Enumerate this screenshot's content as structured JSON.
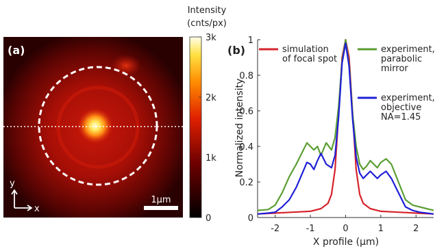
{
  "chart_data": [
    {
      "type": "heatmap",
      "panel_label": "(a)",
      "colorbar": {
        "title_line1": "Intensity",
        "title_line2": "(cnts/px)",
        "ticks": [
          {
            "value": 3000,
            "label": "3k"
          },
          {
            "value": 2000,
            "label": "2k"
          },
          {
            "value": 1000,
            "label": "1k"
          },
          {
            "value": 0,
            "label": "0"
          }
        ],
        "range": [
          0,
          3000
        ]
      },
      "axes_indicator": {
        "y_label": "y",
        "x_label": "x"
      },
      "scale_bar_label": "1μm",
      "annotations": [
        "dashed circle",
        "dotted horizontal line through center"
      ]
    },
    {
      "type": "line",
      "panel_label": "(b)",
      "xlabel": "X profile (μm)",
      "ylabel": "Normalized intensity",
      "xlim": [
        -2.5,
        2.5
      ],
      "ylim": [
        0,
        1
      ],
      "xticks": [
        {
          "value": -2,
          "label": "-2"
        },
        {
          "value": -1,
          "label": "-1"
        },
        {
          "value": 0,
          "label": "0"
        },
        {
          "value": 1,
          "label": "1"
        },
        {
          "value": 2,
          "label": "2"
        }
      ],
      "yticks": [
        {
          "value": 0,
          "label": "0"
        },
        {
          "value": 0.2,
          "label": "0.2"
        },
        {
          "value": 0.4,
          "label": "0.4"
        },
        {
          "value": 0.6,
          "label": "0.6"
        },
        {
          "value": 0.8,
          "label": "0.8"
        },
        {
          "value": 1,
          "label": "1"
        }
      ],
      "legend": [
        {
          "color": "#d6232a",
          "lines": [
            "simulation",
            "of focal spot"
          ]
        },
        {
          "color": "#5a9e32",
          "lines": [
            "experiment,",
            "parabolic",
            "mirror"
          ]
        },
        {
          "color": "#1f1fd6",
          "lines": [
            "experiment,",
            "objective",
            "NA=1.45"
          ]
        }
      ],
      "series": [
        {
          "color": "#d6232a",
          "x": [
            -2.5,
            -2.0,
            -1.5,
            -1.0,
            -0.7,
            -0.5,
            -0.4,
            -0.3,
            -0.2,
            -0.1,
            0,
            0.1,
            0.2,
            0.3,
            0.4,
            0.5,
            0.7,
            1.0,
            1.5,
            2.0,
            2.5
          ],
          "y": [
            0.02,
            0.025,
            0.03,
            0.035,
            0.05,
            0.08,
            0.13,
            0.27,
            0.58,
            0.9,
            1.0,
            0.9,
            0.58,
            0.27,
            0.13,
            0.08,
            0.05,
            0.035,
            0.03,
            0.025,
            0.02
          ]
        },
        {
          "color": "#5a9e32",
          "x": [
            -2.5,
            -2.2,
            -2.0,
            -1.8,
            -1.6,
            -1.4,
            -1.25,
            -1.1,
            -1.0,
            -0.9,
            -0.8,
            -0.7,
            -0.55,
            -0.4,
            -0.3,
            -0.2,
            -0.1,
            0,
            0.1,
            0.2,
            0.3,
            0.4,
            0.5,
            0.6,
            0.7,
            0.8,
            0.9,
            1.0,
            1.15,
            1.3,
            1.5,
            1.7,
            1.9,
            2.1,
            2.3,
            2.5
          ],
          "y": [
            0.04,
            0.045,
            0.07,
            0.14,
            0.23,
            0.3,
            0.36,
            0.42,
            0.4,
            0.38,
            0.4,
            0.35,
            0.42,
            0.38,
            0.45,
            0.62,
            0.88,
            1.0,
            0.86,
            0.58,
            0.4,
            0.3,
            0.27,
            0.29,
            0.32,
            0.3,
            0.28,
            0.31,
            0.33,
            0.3,
            0.2,
            0.1,
            0.07,
            0.06,
            0.05,
            0.04
          ]
        },
        {
          "color": "#1f1fd6",
          "x": [
            -2.5,
            -2.2,
            -2.0,
            -1.8,
            -1.6,
            -1.4,
            -1.25,
            -1.1,
            -1.0,
            -0.9,
            -0.8,
            -0.7,
            -0.55,
            -0.4,
            -0.3,
            -0.2,
            -0.1,
            0,
            0.1,
            0.2,
            0.3,
            0.4,
            0.5,
            0.6,
            0.7,
            0.8,
            0.9,
            1.0,
            1.15,
            1.3,
            1.5,
            1.7,
            1.9,
            2.1,
            2.3,
            2.5
          ],
          "y": [
            0.02,
            0.025,
            0.03,
            0.06,
            0.1,
            0.17,
            0.24,
            0.31,
            0.3,
            0.27,
            0.32,
            0.36,
            0.3,
            0.28,
            0.35,
            0.56,
            0.87,
            0.98,
            0.85,
            0.55,
            0.34,
            0.25,
            0.22,
            0.24,
            0.26,
            0.24,
            0.22,
            0.24,
            0.26,
            0.22,
            0.14,
            0.06,
            0.04,
            0.03,
            0.025,
            0.02
          ]
        }
      ]
    }
  ]
}
